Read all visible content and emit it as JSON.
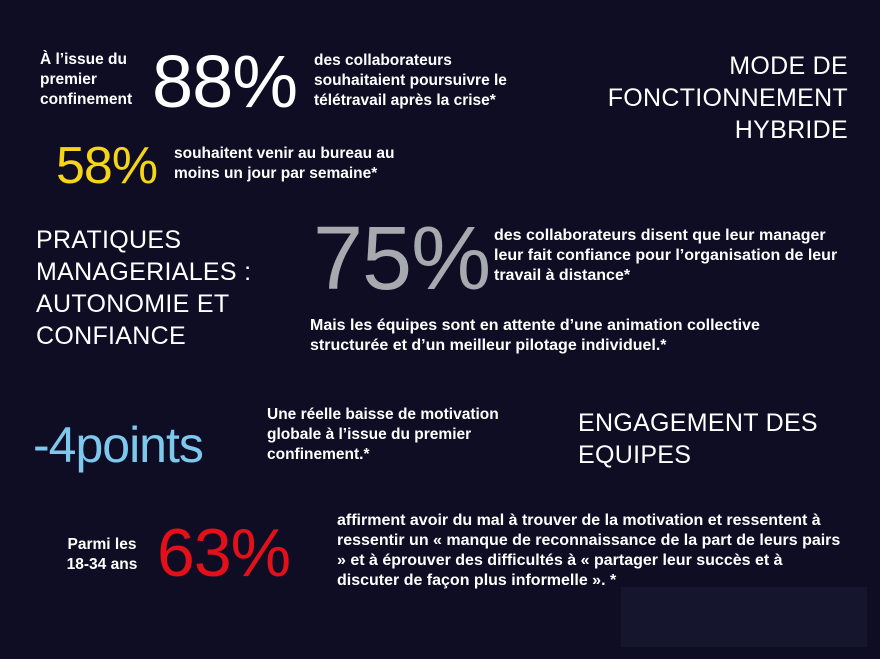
{
  "stats": {
    "first": {
      "prefix": "À l’issue du premier confinement",
      "value": "88%",
      "text": "des collaborateurs souhaitaient poursuivre le télétravail après la crise*"
    },
    "second": {
      "value": "58%",
      "text": "souhaitent venir au bureau au moins un jour par semaine*"
    },
    "third": {
      "value": "75%",
      "text": "des collaborateurs disent que leur manager leur fait confiance pour l’organisation de leur travail à distance*",
      "note": "Mais les équipes  sont en attente d’une animation collective structurée et d’un meilleur pilotage individuel.*"
    },
    "fourth": {
      "value": "-4points",
      "text": "Une réelle baisse de motivation globale à l’issue du premier confinement.*"
    },
    "fifth": {
      "prefix": "Parmi les 18-34 ans",
      "value": "63%",
      "text": "affirment avoir du mal à trouver de la motivation et ressentent à ressentir un « manque de reconnaissance de la part de leurs pairs » et à éprouver des difficultés à « partager leur succès et à discuter de façon plus informelle ». *"
    }
  },
  "headings": {
    "hybrid": "MODE DE FONCTIONNEMENT HYBRIDE",
    "management": "PRATIQUES MANAGERIALES : AUTONOMIE ET CONFIANCE",
    "engagement": "ENGAGEMENT DES EQUIPES"
  },
  "colors": {
    "background": "#0e0d24",
    "white": "#ffffff",
    "yellow": "#f5d516",
    "grey": "#a6a9ae",
    "light_blue": "#7ec8ee",
    "red": "#e3101a"
  }
}
